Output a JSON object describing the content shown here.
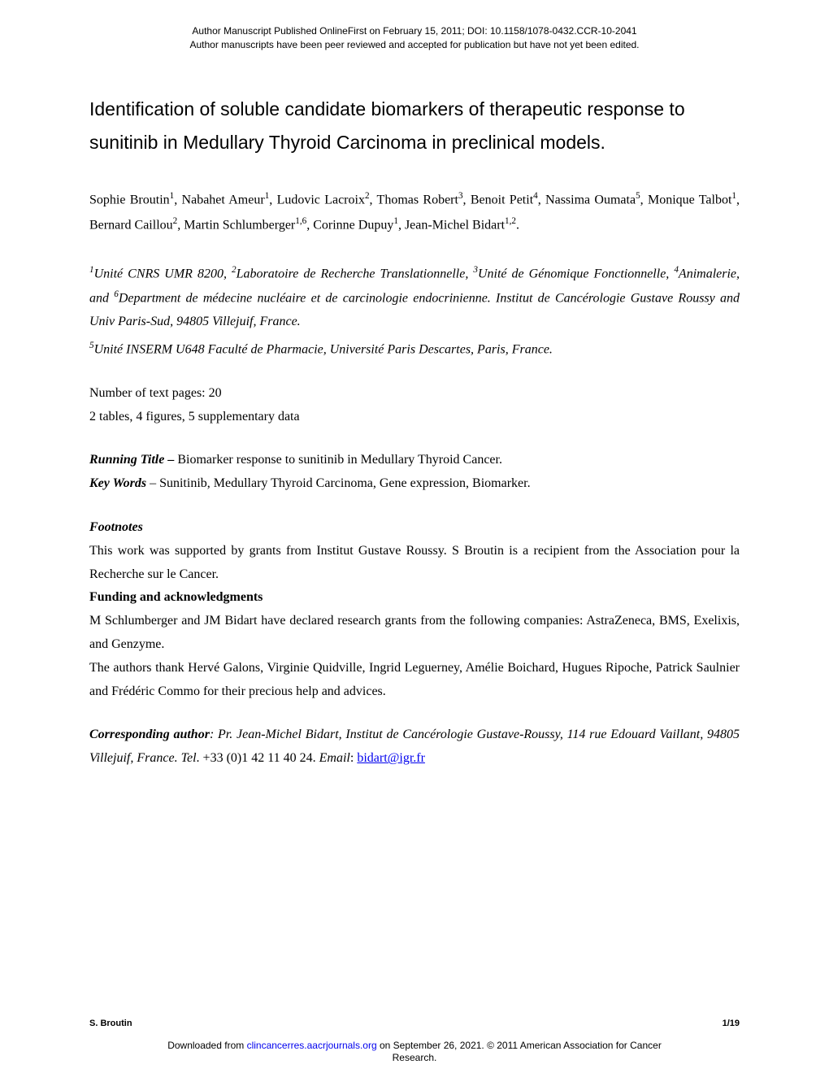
{
  "header": {
    "line1": "Author Manuscript Published OnlineFirst on February 15, 2011; DOI: 10.1158/1078-0432.CCR-10-2041",
    "line2": "Author manuscripts have been peer reviewed and accepted for publication but have not yet been edited."
  },
  "title": "Identification of soluble candidate biomarkers of therapeutic response to sunitinib in Medullary Thyroid Carcinoma in preclinical models.",
  "authors_html": "Sophie Broutin<sup>1</sup>, Nabahet Ameur<sup>1</sup>, Ludovic Lacroix<sup>2</sup>, Thomas Robert<sup>3</sup>, Benoit Petit<sup>4</sup>, Nassima Oumata<sup>5</sup>, Monique Talbot<sup>1</sup>, Bernard Caillou<sup>2</sup>, Martin Schlumberger<sup>1,6</sup>, Corinne Dupuy<sup>1</sup>, Jean-Michel Bidart<sup>1,2</sup>.",
  "affiliations": {
    "block1": "<sup>1</sup>Unité CNRS UMR 8200, <sup>2</sup>Laboratoire de Recherche Translationnelle, <sup>3</sup>Unité de Génomique Fonctionnelle, <sup>4</sup>Animalerie, and <sup>6</sup>Department de médecine nucléaire et de carcinologie endocrinienne. Institut de Cancérologie Gustave Roussy and Univ Paris-Sud, 94805 Villejuif, France.",
    "block2": "<sup>5</sup>Unité INSERM U648 Faculté de Pharmacie, Université Paris Descartes, Paris, France."
  },
  "pages": {
    "line1": "Number of text pages: 20",
    "line2": "2 tables, 4 figures, 5 supplementary data"
  },
  "running_title_label": "Running Title – ",
  "running_title_text": "Biomarker response to sunitinib in Medullary Thyroid Cancer.",
  "keywords_label": "Key Words",
  "keywords_text": " – Sunitinib, Medullary Thyroid Carcinoma, Gene expression, Biomarker.",
  "footnotes": {
    "heading": "Footnotes",
    "text": "This work was supported by grants from Institut Gustave Roussy. S Broutin is a recipient from the Association pour la Recherche sur le Cancer.",
    "funding_heading": "Funding and acknowledgments",
    "funding_text1": "M Schlumberger and JM Bidart have declared research grants from the following companies: AstraZeneca, BMS, Exelixis, and Genzyme.",
    "funding_text2": "The authors thank Hervé Galons, Virginie Quidville, Ingrid Leguerney, Amélie Boichard, Hugues Ripoche, Patrick Saulnier and Frédéric Commo for their precious help and advices."
  },
  "corresponding": {
    "label": "Corresponding author",
    "text": ": Pr. Jean-Michel Bidart, Institut de Cancérologie Gustave-Roussy, 114 rue Edouard Vaillant, 94805 Villejuif, France. ",
    "tel_label": "Tel",
    "tel": ". +33 (0)1 42 11 40 24. ",
    "email_label": "Email",
    "email_sep": ": ",
    "email": "bidart@igr.fr"
  },
  "footer": {
    "author": "S. Broutin",
    "page": "1/19",
    "download_prefix": "Downloaded from ",
    "download_link": "clincancerres.aacrjournals.org",
    "download_suffix": " on September 26, 2021. © 2011 American Association for Cancer",
    "download_line2": "Research."
  }
}
